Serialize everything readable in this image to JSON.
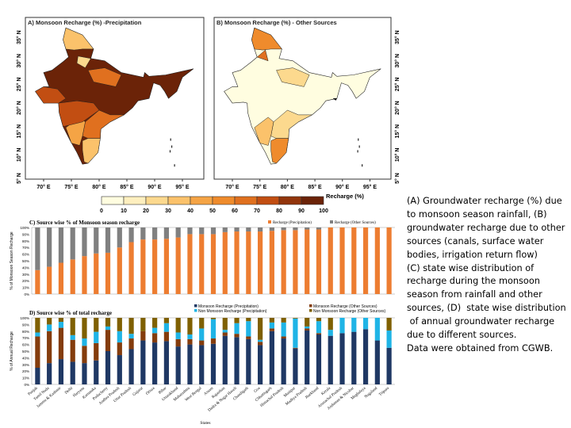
{
  "maps": {
    "panel_a_title": "A) Monsoon Recharge (%) -Precipitation",
    "panel_b_title": "B) Monsoon Recharge (%) - Other Sources",
    "lon_ticks": [
      "70° E",
      "75° E",
      "80° E",
      "85° E",
      "90° E",
      "95° E"
    ],
    "lat_ticks": [
      "5° N",
      "10° N",
      "15° N",
      "20° N",
      "25° N",
      "30° N",
      "35° N"
    ],
    "colorbar_label": "Recharge (%)",
    "colorbar_ticks": [
      "0",
      "10",
      "20",
      "30",
      "40",
      "50",
      "60",
      "70",
      "80",
      "90",
      "100"
    ],
    "colorbar_colors": [
      "#fffde0",
      "#feefbf",
      "#fcd98e",
      "#fbc26b",
      "#f5a445",
      "#ef8b2c",
      "#e0701f",
      "#c24e12",
      "#92350c",
      "#6b2308"
    ]
  },
  "chart_data": [
    {
      "type": "bar",
      "stacked": true,
      "title": "C) Source wise % of Monsoon season recharge",
      "ylabel": "% of Monsoon Season Recharge",
      "ylim": [
        0,
        100
      ],
      "yticks": [
        "0%",
        "10%",
        "20%",
        "30%",
        "40%",
        "50%",
        "60%",
        "70%",
        "80%",
        "90%",
        "100%"
      ],
      "legend_position": "top-right",
      "series": [
        {
          "name": "Recharge (Precipitation)",
          "color": "#ed7d31",
          "values": [
            36,
            41,
            47,
            52,
            57,
            61,
            62,
            70,
            78,
            82,
            82,
            83,
            85,
            90,
            90,
            90,
            93,
            94,
            94,
            94,
            95,
            96,
            96,
            97,
            97,
            100,
            100,
            100,
            100,
            100,
            100
          ]
        },
        {
          "name": "Recharge (Other Sources)",
          "color": "#808080",
          "values": [
            64,
            59,
            53,
            48,
            43,
            39,
            38,
            30,
            22,
            18,
            18,
            17,
            15,
            10,
            10,
            10,
            7,
            6,
            6,
            6,
            5,
            4,
            4,
            3,
            3,
            0,
            0,
            0,
            0,
            0,
            0
          ]
        }
      ]
    },
    {
      "type": "bar",
      "stacked": true,
      "title": "D) Source wise % of total recharge",
      "xlabel": "States",
      "ylabel": "% of Annual Recharge",
      "ylim": [
        0,
        100
      ],
      "yticks": [
        "0%",
        "10%",
        "20%",
        "30%",
        "40%",
        "50%",
        "60%",
        "70%",
        "80%",
        "90%",
        "100%"
      ],
      "legend_position": "top-right",
      "categories": [
        "Punjab",
        "Tamil Nadu",
        "Jammu & Kashmir",
        "Delhi",
        "Haryana",
        "Karnataka",
        "Puducherry",
        "Andhra Pradesh",
        "Uttar Pradesh",
        "Gujarat",
        "Orissa",
        "Bihar",
        "Uttarakhand",
        "Maharashtra",
        "West Bengal",
        "Assam",
        "Rajasthan",
        "Dadra & Nagar Haveli",
        "Chandigarh",
        "Goa",
        "Chhattisgarh",
        "Himachal Pradesh",
        "Manipur",
        "Madhya Pradesh",
        "Jharkhand",
        "Kerala",
        "Arunachal Pradesh",
        "Andaman & Nicobar",
        "Meghalaya",
        "Nagaland",
        "Tripura"
      ],
      "series": [
        {
          "name": "Monsoon Recharge (Precipitation)",
          "color": "#1f3864",
          "values": [
            25,
            32,
            38,
            34,
            32,
            36,
            50,
            44,
            53,
            66,
            63,
            65,
            57,
            60,
            59,
            61,
            73,
            71,
            68,
            59,
            80,
            69,
            54,
            81,
            75,
            73,
            77,
            79,
            83,
            66,
            55
          ]
        },
        {
          "name": "Monsoon Recharge (Other Sources)",
          "color": "#843c0c",
          "values": [
            47,
            48,
            47,
            33,
            26,
            26,
            32,
            19,
            16,
            14,
            14,
            14,
            11,
            8,
            7,
            8,
            5,
            5,
            4,
            5,
            4,
            3,
            1,
            3,
            2,
            0,
            0,
            0,
            0,
            0,
            0
          ]
        },
        {
          "name": "Non Monsoon Recharge (Precipitation)",
          "color": "#1fb4e6",
          "values": [
            6,
            10,
            9,
            7,
            11,
            17,
            5,
            17,
            7,
            0,
            8,
            13,
            10,
            7,
            18,
            29,
            4,
            16,
            23,
            3,
            9,
            21,
            44,
            3,
            18,
            9,
            23,
            21,
            17,
            34,
            26
          ]
        },
        {
          "name": "Non Monsoon Recharge (Other Sources)",
          "color": "#7f6000",
          "values": [
            22,
            10,
            6,
            26,
            31,
            21,
            13,
            20,
            24,
            20,
            15,
            8,
            22,
            25,
            16,
            2,
            18,
            8,
            5,
            33,
            7,
            7,
            1,
            13,
            5,
            18,
            0,
            0,
            0,
            0,
            19
          ]
        }
      ]
    }
  ],
  "caption": "(A) Groundwater recharge (%) due to monsoon season rainfall, (B) groundwater recharge due to other sources (canals, surface water bodies, irrigation return flow)\n(C) state wise distribution of recharge during the monsoon season from rainfall and other  sources, (D)  state wise distribution\n of annual groundwater recharge due to different sources.\nData were obtained from CGWB."
}
